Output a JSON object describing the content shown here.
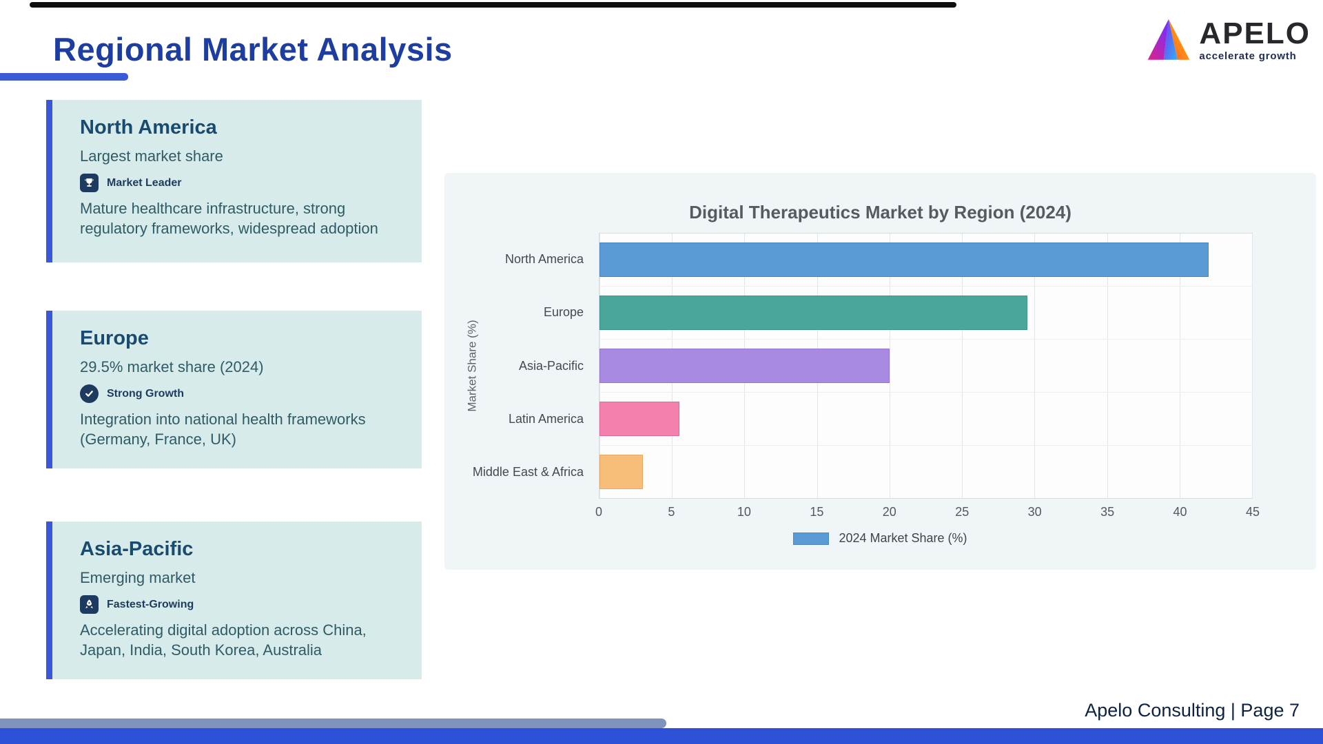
{
  "slide": {
    "title": "Regional Market Analysis",
    "footer": "Apelo Consulting | Page 7"
  },
  "logo": {
    "brand": "APELO",
    "tagline": "accelerate growth"
  },
  "cards": [
    {
      "title": "North America",
      "subtitle": "Largest market share",
      "badge": "Market Leader",
      "badge_icon": "trophy",
      "description": "Mature healthcare infrastructure, strong regulatory frameworks, widespread adoption"
    },
    {
      "title": "Europe",
      "subtitle": "29.5% market share (2024)",
      "badge": "Strong Growth",
      "badge_icon": "check-seal",
      "description": "Integration into national health frameworks (Germany, France, UK)"
    },
    {
      "title": "Asia-Pacific",
      "subtitle": "Emerging market",
      "badge": "Fastest-Growing",
      "badge_icon": "rocket",
      "description": "Accelerating digital adoption across China, Japan, India, South Korea, Australia"
    }
  ],
  "chart_data": {
    "type": "bar",
    "orientation": "horizontal",
    "title": "Digital Therapeutics Market by Region (2024)",
    "categories": [
      "North America",
      "Europe",
      "Asia-Pacific",
      "Latin America",
      "Middle East & Africa"
    ],
    "values": [
      42,
      29.5,
      20,
      5.5,
      3
    ],
    "ylabel": "Market Share (%)",
    "xlabel": "",
    "xlim": [
      0,
      45
    ],
    "xticks": [
      0,
      5,
      10,
      15,
      20,
      25,
      30,
      35,
      40,
      45
    ],
    "grid": true,
    "legend": "2024 Market Share (%)",
    "legend_position": "bottom",
    "legend_color": "#5b9bd5",
    "legend_border": "#4a86c0",
    "bar_colors": [
      "#5b9bd5",
      "#4aa69b",
      "#a98ae3",
      "#f480ae",
      "#f8bd78"
    ],
    "bar_borders": [
      "#4a86c0",
      "#3a968b",
      "#9375cf",
      "#e2689a",
      "#e8a863"
    ]
  },
  "colors": {
    "accent_blue": "#3a57d8",
    "title_blue": "#1d3da1",
    "card_bg": "#d7ecea",
    "badge_navy": "#1d3a5f",
    "bottom_bar": "#2d52d8"
  }
}
